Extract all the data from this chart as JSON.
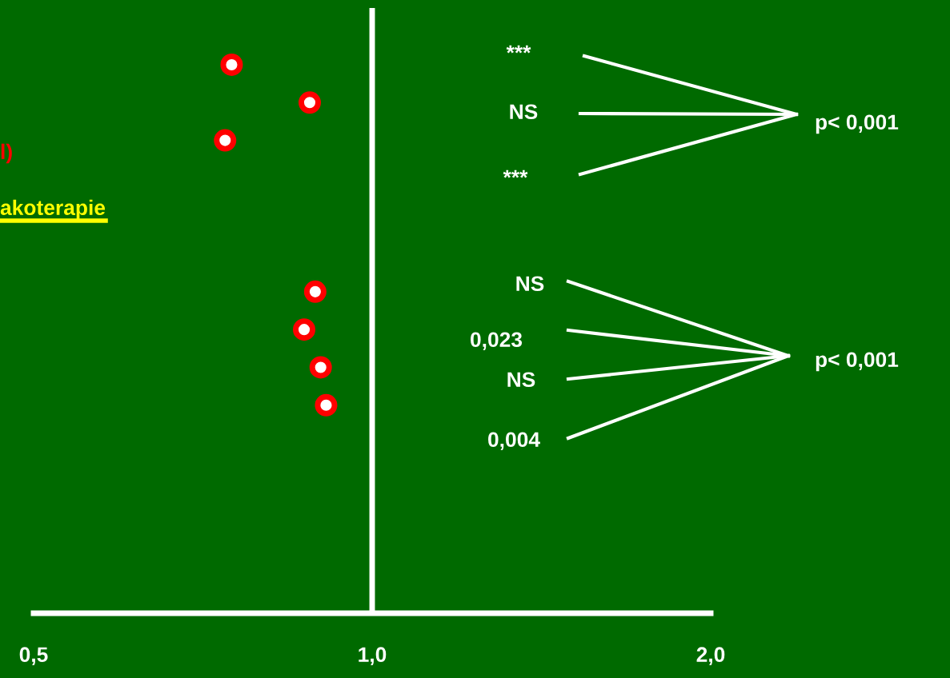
{
  "chart_data": {
    "type": "scatter",
    "orientation": "horizontal",
    "categories": [
      null,
      null,
      null,
      null,
      null,
      null,
      null,
      null,
      null,
      null,
      null,
      null,
      null,
      null,
      null,
      null
    ],
    "series": [
      {
        "color": "#ff0000",
        "values": [
          null,
          0.75,
          0.88,
          0.74,
          null,
          null,
          null,
          0.89,
          0.87,
          0.9,
          0.91,
          null,
          null,
          null,
          null,
          null
        ]
      }
    ],
    "marker": "circle",
    "log": "x",
    "grid": false,
    "legend": false,
    "tick_labels": "x",
    "xlim": [
      0.5,
      2.0
    ],
    "xticks": [
      {
        "value": 0.5,
        "label": "0,5"
      },
      {
        "value": 1.0,
        "label": "1,0"
      },
      {
        "value": 2.0,
        "label": "2,0"
      }
    ],
    "ref_lines": [
      {
        "axis": "x",
        "value": 1.0,
        "color": "#ffffff"
      }
    ],
    "annotations": [
      "l)",
      "akoterapie",
      "***",
      "NS",
      "***",
      "NS",
      "0,023",
      "NS",
      "0,004",
      "p< 0,001",
      "p< 0,001"
    ]
  }
}
